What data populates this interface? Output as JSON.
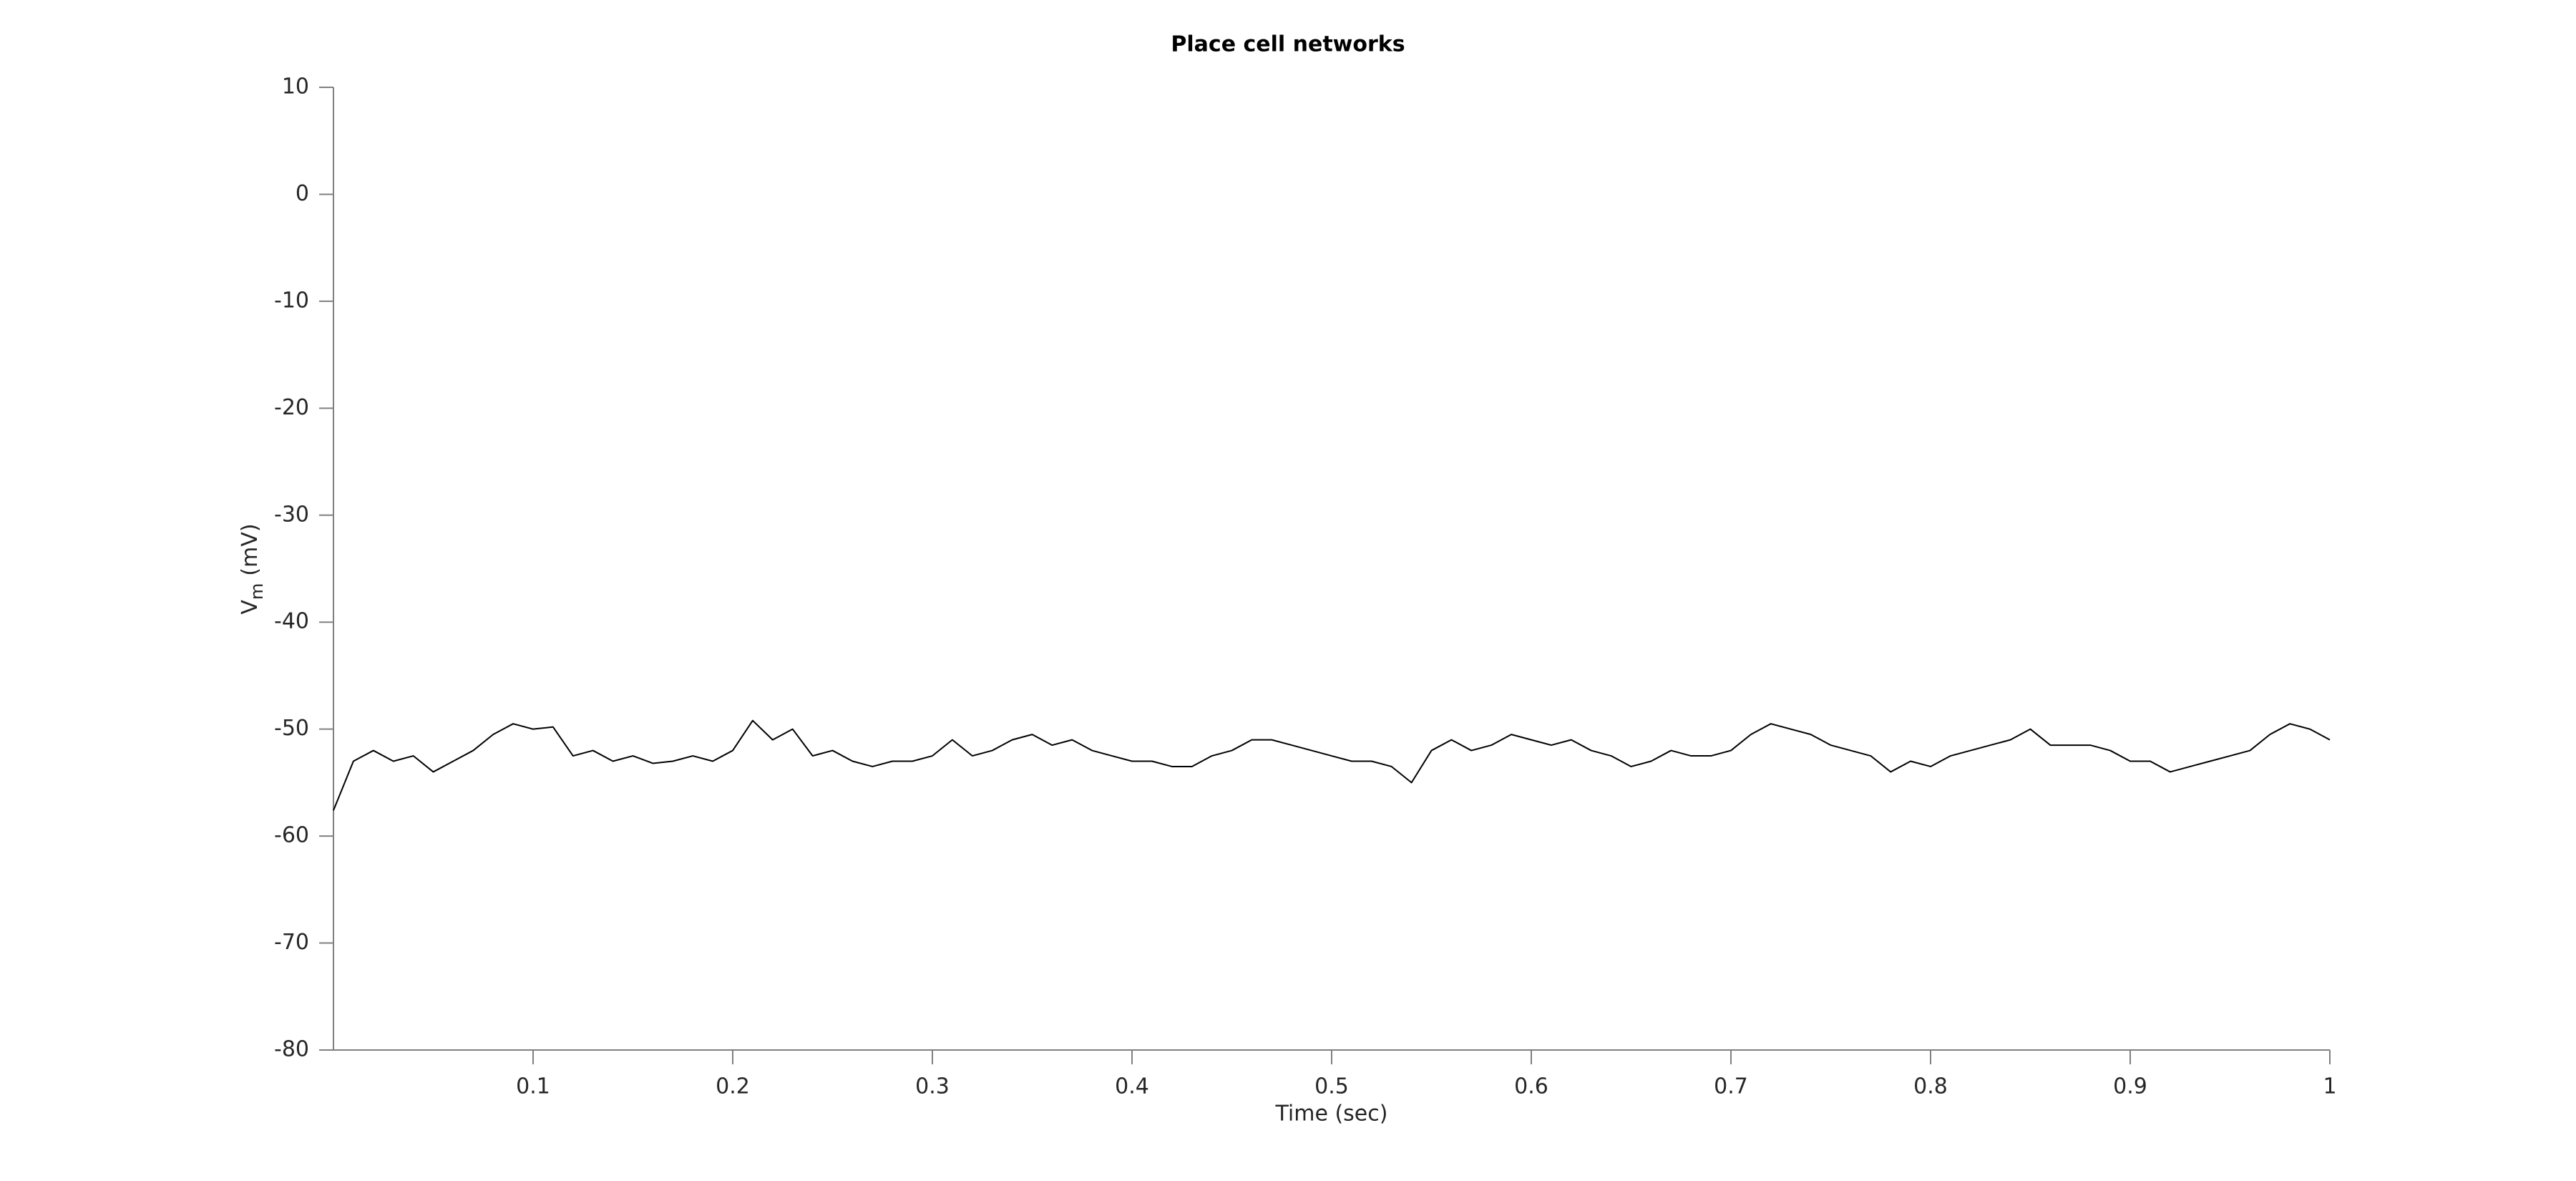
{
  "chart_data": {
    "type": "line",
    "title": "Place cell networks",
    "xlabel": "Time (sec)",
    "ylabel": {
      "main": "V",
      "sub": "m",
      "unit": "(mV)"
    },
    "xlim": [
      0,
      1
    ],
    "xticks": [
      0.1,
      0.2,
      0.3,
      0.4,
      0.5,
      0.6,
      0.7,
      0.8,
      0.9,
      1
    ],
    "ylim": [
      -80,
      10
    ],
    "yticks": [
      -80,
      -70,
      -60,
      -50,
      -40,
      -30,
      -20,
      -10,
      0,
      10
    ],
    "grid": false,
    "series": [
      {
        "color": "#000000",
        "x": [
          0,
          0.01,
          0.02,
          0.03,
          0.04,
          0.05,
          0.06,
          0.07,
          0.08,
          0.09,
          0.1,
          0.11,
          0.12,
          0.13,
          0.14,
          0.15,
          0.16,
          0.17,
          0.18,
          0.19,
          0.2,
          0.21,
          0.22,
          0.23,
          0.24,
          0.25,
          0.26,
          0.27,
          0.28,
          0.29,
          0.3,
          0.31,
          0.32,
          0.33,
          0.34,
          0.35,
          0.36,
          0.37,
          0.38,
          0.39,
          0.4,
          0.41,
          0.42,
          0.43,
          0.44,
          0.45,
          0.46,
          0.47,
          0.48,
          0.49,
          0.5,
          0.51,
          0.52,
          0.53,
          0.54,
          0.55,
          0.56,
          0.57,
          0.58,
          0.59,
          0.6,
          0.61,
          0.62,
          0.63,
          0.64,
          0.65,
          0.66,
          0.67,
          0.68,
          0.69,
          0.7,
          0.71,
          0.72,
          0.73,
          0.74,
          0.75,
          0.76,
          0.77,
          0.78,
          0.79,
          0.8,
          0.81,
          0.82,
          0.83,
          0.84,
          0.85,
          0.86,
          0.87,
          0.88,
          0.89,
          0.9,
          0.91,
          0.92,
          0.93,
          0.94,
          0.95,
          0.96,
          0.97,
          0.98,
          0.99,
          1
        ],
        "values": [
          -57.6,
          -53,
          -52,
          -53,
          -52.5,
          -54,
          -53,
          -52,
          -50.5,
          -49.5,
          -50,
          -49.8,
          -52.5,
          -52,
          -53,
          -52.5,
          -53.2,
          -53,
          -52.5,
          -53,
          -52,
          -49.2,
          -51,
          -50,
          -52.5,
          -52,
          -53,
          -53.5,
          -53,
          -53,
          -52.5,
          -51,
          -52.5,
          -52,
          -51,
          -50.5,
          -51.5,
          -51,
          -52,
          -52.5,
          -53,
          -53,
          -53.5,
          -53.5,
          -52.5,
          -52,
          -51,
          -51,
          -51.5,
          -52,
          -52.5,
          -53,
          -53,
          -53.5,
          -55,
          -52,
          -51,
          -52,
          -51.5,
          -50.5,
          -51,
          -51.5,
          -51,
          -52,
          -52.5,
          -53.5,
          -53,
          -52,
          -52.5,
          -52.5,
          -52,
          -50.5,
          -49.5,
          -50,
          -50.5,
          -51.5,
          -52,
          -52.5,
          -54,
          -53,
          -53.5,
          -52.5,
          -52,
          -51.5,
          -51,
          -50,
          -51.5,
          -51.5,
          -51.5,
          -52,
          -53,
          -53,
          -54,
          -53.5,
          -53,
          -52.5,
          -52,
          -50.5,
          -49.5,
          -50,
          -51
        ]
      }
    ]
  }
}
